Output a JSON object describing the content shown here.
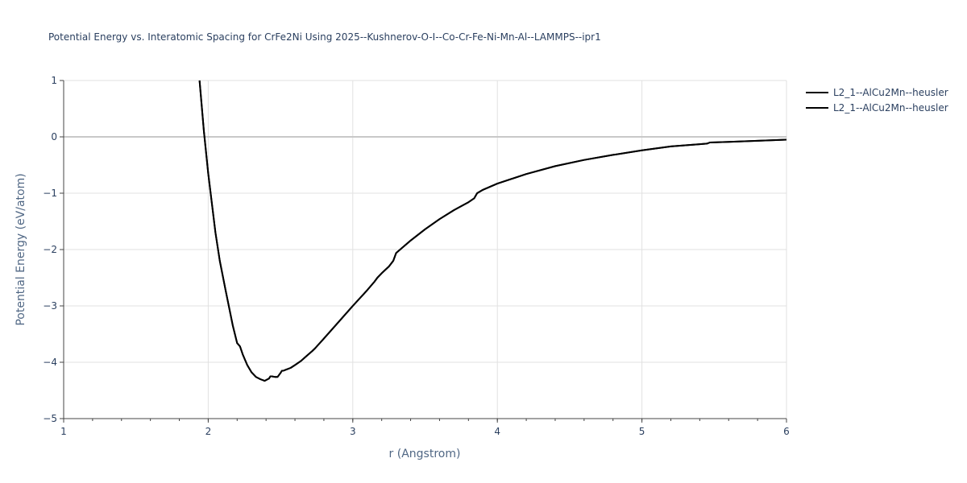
{
  "chart_data": {
    "type": "line",
    "title": "Potential Energy vs. Interatomic Spacing for CrFe2Ni Using 2025--Kushnerov-O-I--Co-Cr-Fe-Ni-Mn-Al--LAMMPS--ipr1",
    "xlabel": "r (Angstrom)",
    "ylabel": "Potential Energy (eV/atom)",
    "xlim": [
      1,
      6
    ],
    "ylim": [
      -5,
      1
    ],
    "x_ticks": [
      1,
      2,
      3,
      4,
      5,
      6
    ],
    "y_ticks": [
      1,
      0,
      -1,
      -2,
      -3,
      -4,
      -5
    ],
    "x_tick_labels": [
      "1",
      "2",
      "3",
      "4",
      "5",
      "6"
    ],
    "y_tick_labels": [
      "1",
      "0",
      "−1",
      "−2",
      "−3",
      "−4",
      "−5"
    ],
    "grid": true,
    "legend_position": "top-right",
    "line_color": "#000000",
    "series": [
      {
        "name": "L2_1--AlCu2Mn--heusler",
        "x": [
          1.94,
          1.97,
          2.0,
          2.05,
          2.08,
          2.12,
          2.17,
          2.2,
          2.22,
          2.24,
          2.27,
          2.3,
          2.33,
          2.36,
          2.39,
          2.42,
          2.43,
          2.44,
          2.46,
          2.48,
          2.5,
          2.51,
          2.52,
          2.54,
          2.57,
          2.6,
          2.64,
          2.68,
          2.72,
          2.74,
          2.8,
          2.9,
          3.0,
          3.1,
          3.15,
          3.17,
          3.2,
          3.25,
          3.28,
          3.3,
          3.35,
          3.4,
          3.5,
          3.6,
          3.7,
          3.8,
          3.84,
          3.86,
          3.9,
          4.0,
          4.2,
          4.4,
          4.6,
          4.8,
          5.0,
          5.2,
          5.4,
          5.45,
          5.47,
          5.6,
          5.8,
          6.0
        ],
        "y": [
          1.0,
          0.1,
          -0.65,
          -1.7,
          -2.2,
          -2.72,
          -3.35,
          -3.66,
          -3.72,
          -3.87,
          -4.05,
          -4.18,
          -4.26,
          -4.3,
          -4.33,
          -4.29,
          -4.25,
          -4.25,
          -4.26,
          -4.26,
          -4.19,
          -4.15,
          -4.15,
          -4.13,
          -4.1,
          -4.05,
          -3.98,
          -3.89,
          -3.8,
          -3.75,
          -3.58,
          -3.29,
          -3.0,
          -2.72,
          -2.57,
          -2.5,
          -2.42,
          -2.3,
          -2.2,
          -2.06,
          -1.95,
          -1.84,
          -1.64,
          -1.46,
          -1.3,
          -1.16,
          -1.09,
          -1.0,
          -0.94,
          -0.83,
          -0.66,
          -0.52,
          -0.41,
          -0.32,
          -0.24,
          -0.17,
          -0.13,
          -0.12,
          -0.1,
          -0.09,
          -0.07,
          -0.05
        ]
      },
      {
        "name": "L2_1--AlCu2Mn--heusler",
        "x": [
          1.94,
          1.97,
          2.0,
          2.05,
          2.08,
          2.12,
          2.17,
          2.2,
          2.22,
          2.24,
          2.27,
          2.3,
          2.33,
          2.36,
          2.39,
          2.42,
          2.43,
          2.44,
          2.46,
          2.48,
          2.5,
          2.51,
          2.52,
          2.54,
          2.57,
          2.6,
          2.64,
          2.68,
          2.72,
          2.74,
          2.8,
          2.9,
          3.0,
          3.1,
          3.15,
          3.17,
          3.2,
          3.25,
          3.28,
          3.3,
          3.35,
          3.4,
          3.5,
          3.6,
          3.7,
          3.8,
          3.84,
          3.86,
          3.9,
          4.0,
          4.2,
          4.4,
          4.6,
          4.8,
          5.0,
          5.2,
          5.4,
          5.45,
          5.47,
          5.6,
          5.8,
          6.0
        ],
        "y": [
          1.0,
          0.1,
          -0.65,
          -1.7,
          -2.2,
          -2.72,
          -3.35,
          -3.66,
          -3.72,
          -3.87,
          -4.05,
          -4.18,
          -4.26,
          -4.3,
          -4.33,
          -4.29,
          -4.25,
          -4.25,
          -4.26,
          -4.26,
          -4.19,
          -4.15,
          -4.15,
          -4.13,
          -4.1,
          -4.05,
          -3.98,
          -3.89,
          -3.8,
          -3.75,
          -3.58,
          -3.29,
          -3.0,
          -2.72,
          -2.57,
          -2.5,
          -2.42,
          -2.3,
          -2.2,
          -2.06,
          -1.95,
          -1.84,
          -1.64,
          -1.46,
          -1.3,
          -1.16,
          -1.09,
          -1.0,
          -0.94,
          -0.83,
          -0.66,
          -0.52,
          -0.41,
          -0.32,
          -0.24,
          -0.17,
          -0.13,
          -0.12,
          -0.1,
          -0.09,
          -0.07,
          -0.05
        ]
      }
    ]
  }
}
